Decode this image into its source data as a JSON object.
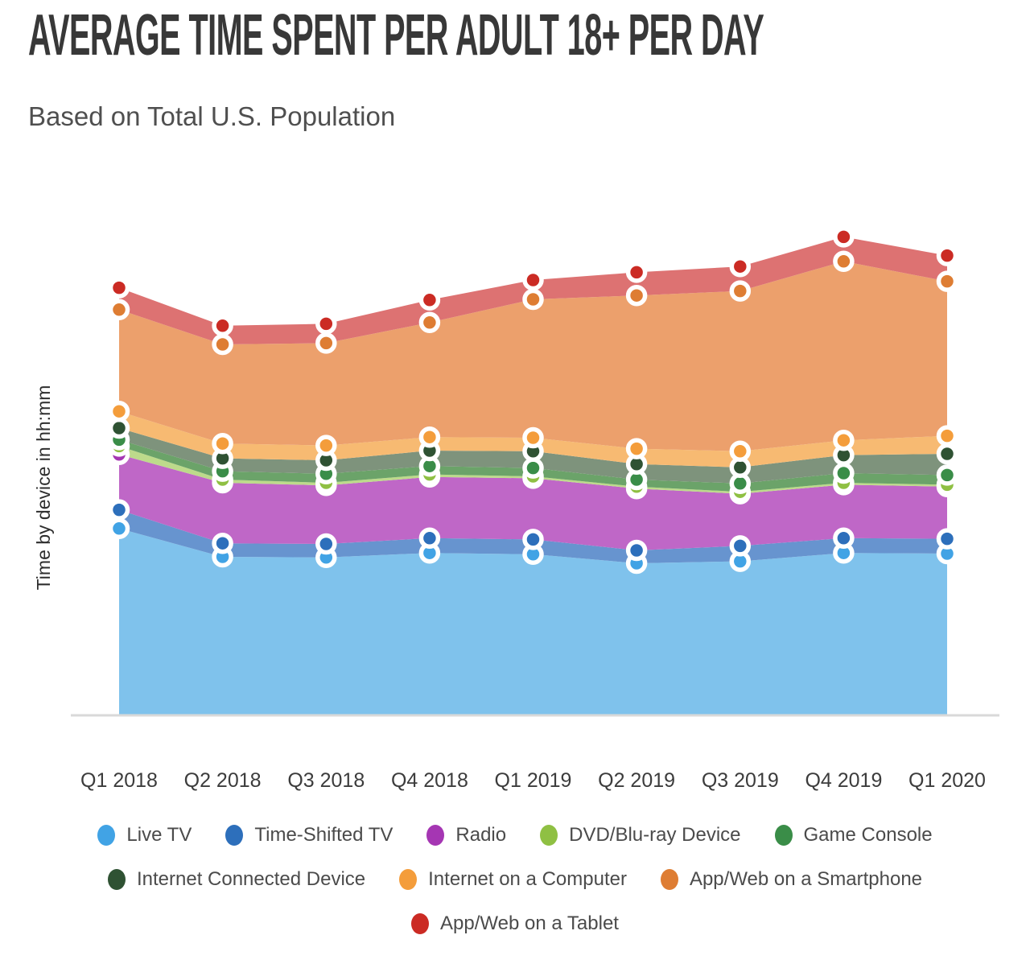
{
  "header": {
    "title": "AVERAGE TIME SPENT PER ADULT 18+ PER DAY",
    "subtitle": "Based on Total U.S. Population"
  },
  "chart_data": {
    "type": "area",
    "stacked": true,
    "title": "AVERAGE TIME SPENT PER ADULT 18+ PER DAY",
    "subtitle": "Based on Total U.S. Population",
    "xlabel": "",
    "ylabel": "Time by device in hh:mm",
    "y_unit": "hh:mm per day",
    "y_range_minutes": [
      0,
      760
    ],
    "grid": false,
    "legend_position": "bottom",
    "marker_style": "circle-white-ring",
    "axis_line_color": "#d9d9d9",
    "categories": [
      "Q1 2018",
      "Q2 2018",
      "Q3 2018",
      "Q4 2018",
      "Q1 2019",
      "Q2 2019",
      "Q3 2019",
      "Q4 2019",
      "Q1 2020"
    ],
    "series": [
      {
        "name": "Live TV",
        "color": "#41a3e5",
        "fill": "#7fc2ec",
        "values_min": [
          289,
          245,
          244,
          251,
          249,
          235,
          238,
          251,
          250
        ],
        "values_hhmm": [
          "4:49",
          "4:05",
          "4:04",
          "4:11",
          "4:09",
          "3:55",
          "3:58",
          "4:11",
          "4:10"
        ]
      },
      {
        "name": "Time-Shifted TV",
        "color": "#2d6fbb",
        "fill": "#6794cf",
        "values_min": [
          29,
          21,
          21,
          23,
          23,
          20,
          24,
          23,
          23
        ],
        "values_hhmm": [
          "0:29",
          "0:21",
          "0:21",
          "0:23",
          "0:23",
          "0:20",
          "0:24",
          "0:23",
          "0:23"
        ]
      },
      {
        "name": "Radio",
        "color": "#a536b3",
        "fill": "#bf67c7",
        "values_min": [
          86,
          94,
          91,
          95,
          95,
          96,
          81,
          83,
          81
        ],
        "values_hhmm": [
          "1:26",
          "1:34",
          "1:31",
          "1:35",
          "1:35",
          "1:36",
          "1:21",
          "1:23",
          "1:21"
        ]
      },
      {
        "name": "DVD/Blu-ray Device",
        "color": "#8fc043",
        "fill": "#bdda8b",
        "values_min": [
          13,
          5,
          4,
          4,
          3,
          3,
          3,
          3,
          3
        ],
        "values_hhmm": [
          "0:13",
          "0:05",
          "0:04",
          "0:04",
          "0:03",
          "0:03",
          "0:03",
          "0:03",
          "0:03"
        ]
      },
      {
        "name": "Game Console",
        "color": "#3a8d48",
        "fill": "#6ba369",
        "values_min": [
          10,
          13,
          14,
          13,
          13,
          11,
          13,
          15,
          15
        ],
        "values_hhmm": [
          "0:10",
          "0:13",
          "0:14",
          "0:13",
          "0:13",
          "0:11",
          "0:13",
          "0:15",
          "0:15"
        ]
      },
      {
        "name": "Internet Connected Device",
        "color": "#2f5233",
        "fill": "#7e937c",
        "values_min": [
          18,
          20,
          21,
          24,
          26,
          24,
          25,
          28,
          33
        ],
        "values_hhmm": [
          "0:18",
          "0:20",
          "0:21",
          "0:24",
          "0:26",
          "0:24",
          "0:25",
          "0:28",
          "0:33"
        ]
      },
      {
        "name": "Internet on a Computer",
        "color": "#f49d3b",
        "fill": "#f7ba72",
        "values_min": [
          26,
          23,
          23,
          21,
          21,
          24,
          25,
          23,
          28
        ],
        "values_hhmm": [
          "0:26",
          "0:23",
          "0:23",
          "0:21",
          "0:21",
          "0:24",
          "0:25",
          "0:23",
          "0:28"
        ]
      },
      {
        "name": "App/Web on a Smartphone",
        "color": "#de7d33",
        "fill": "#eca06c",
        "values_min": [
          158,
          154,
          159,
          178,
          215,
          238,
          249,
          278,
          240
        ],
        "values_hhmm": [
          "2:38",
          "2:34",
          "2:39",
          "2:58",
          "3:35",
          "3:58",
          "4:09",
          "4:38",
          "4:00"
        ]
      },
      {
        "name": "App/Web on a Tablet",
        "color": "#cb2b24",
        "fill": "#dd7272",
        "values_min": [
          34,
          29,
          30,
          35,
          30,
          36,
          38,
          38,
          40
        ],
        "values_hhmm": [
          "0:34",
          "0:29",
          "0:30",
          "0:35",
          "0:30",
          "0:36",
          "0:38",
          "0:38",
          "0:40"
        ]
      }
    ],
    "legend_rows": [
      [
        0,
        1,
        2,
        3,
        4
      ],
      [
        5,
        6,
        7
      ],
      [
        8
      ]
    ]
  }
}
